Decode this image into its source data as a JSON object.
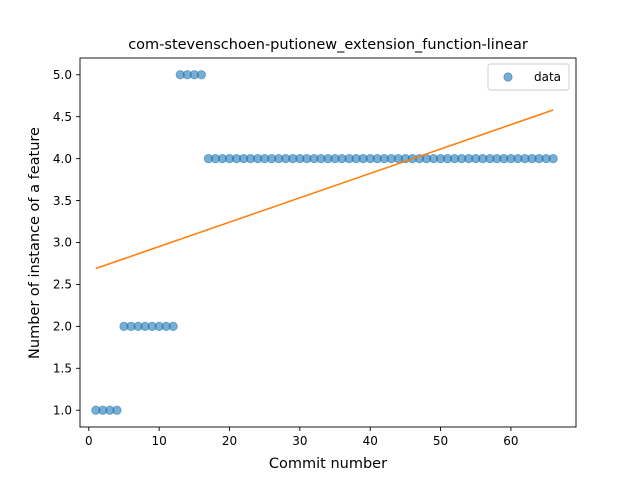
{
  "chart_data": {
    "type": "scatter",
    "title": "com-stevenschoen-putionew_extension_function-linear",
    "xlabel": "Commit number",
    "ylabel": "Number of instance of a feature",
    "xlim": [
      -1.25,
      69.25
    ],
    "ylim": [
      0.8,
      5.2
    ],
    "xticks": [
      0,
      10,
      20,
      30,
      40,
      50,
      60
    ],
    "yticks": [
      1.0,
      1.5,
      2.0,
      2.5,
      3.0,
      3.5,
      4.0,
      4.5,
      5.0
    ],
    "xtick_labels": [
      "0",
      "10",
      "20",
      "30",
      "40",
      "50",
      "60"
    ],
    "ytick_labels": [
      "1.0",
      "1.5",
      "2.0",
      "2.5",
      "3.0",
      "3.5",
      "4.0",
      "4.5",
      "5.0"
    ],
    "grid": false,
    "legend_position": "top-right",
    "series": [
      {
        "name": "data",
        "kind": "scatter",
        "color": "#1f77b4",
        "x": [
          1,
          2,
          3,
          4,
          5,
          6,
          7,
          8,
          9,
          10,
          11,
          12,
          13,
          14,
          15,
          16,
          17,
          18,
          19,
          20,
          21,
          22,
          23,
          24,
          25,
          26,
          27,
          28,
          29,
          30,
          31,
          32,
          33,
          34,
          35,
          36,
          37,
          38,
          39,
          40,
          41,
          42,
          43,
          44,
          45,
          46,
          47,
          48,
          49,
          50,
          51,
          52,
          53,
          54,
          55,
          56,
          57,
          58,
          59,
          60,
          61,
          62,
          63,
          64,
          65,
          66
        ],
        "y": [
          1,
          1,
          1,
          1,
          2,
          2,
          2,
          2,
          2,
          2,
          2,
          2,
          5,
          5,
          5,
          5,
          4,
          4,
          4,
          4,
          4,
          4,
          4,
          4,
          4,
          4,
          4,
          4,
          4,
          4,
          4,
          4,
          4,
          4,
          4,
          4,
          4,
          4,
          4,
          4,
          4,
          4,
          4,
          4,
          4,
          4,
          4,
          4,
          4,
          4,
          4,
          4,
          4,
          4,
          4,
          4,
          4,
          4,
          4,
          4,
          4,
          4,
          4,
          4,
          4,
          4
        ]
      },
      {
        "kind": "line",
        "color": "#ff7f0e",
        "x": [
          1,
          66
        ],
        "y": [
          2.69,
          4.58
        ]
      }
    ]
  }
}
